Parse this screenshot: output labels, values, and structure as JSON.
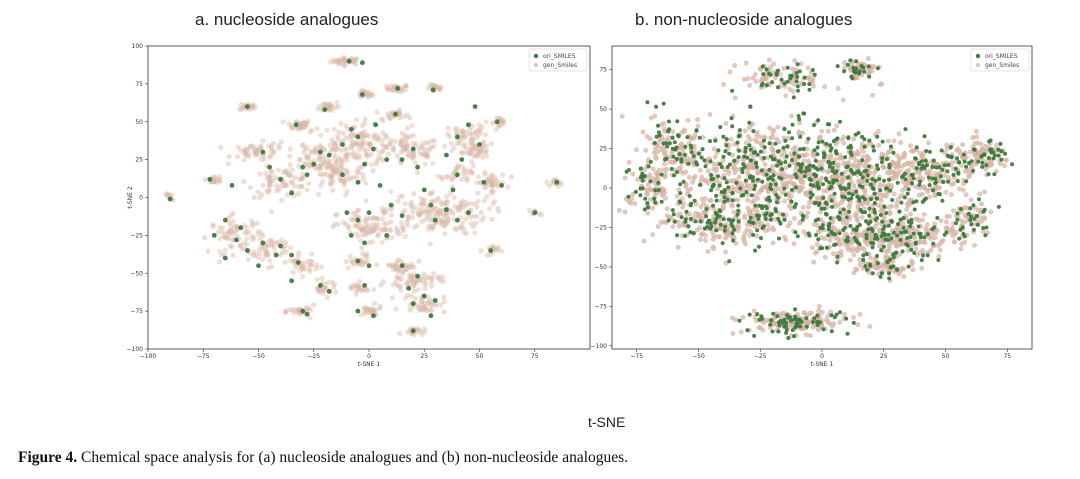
{
  "panels": {
    "a": {
      "title": "a. nucleoside analogues"
    },
    "b": {
      "title": "b. non-nucleoside analogues"
    }
  },
  "overall_label": "t-SNE",
  "caption": {
    "label": "Figure 4.",
    "text": " Chemical space analysis for (a) nucleoside analogues and (b) non-nucleoside analogues."
  },
  "colors": {
    "ori": "#3f7a3f",
    "gen": "#d9b8a8",
    "gen_edge": "#c9a090",
    "frame": "#333333"
  },
  "chart_data": [
    {
      "type": "scatter",
      "title": "a. nucleoside analogues",
      "xlabel": "t-SNE 1",
      "ylabel": "t-SNE 2",
      "xlim": [
        -100,
        100
      ],
      "ylim": [
        -100,
        100
      ],
      "xticks": [
        -100,
        -75,
        -50,
        -25,
        0,
        25,
        50,
        75
      ],
      "yticks": [
        -100,
        -75,
        -50,
        -25,
        0,
        25,
        50,
        75,
        100
      ],
      "legend": {
        "position": "top-right",
        "entries": [
          "ori_SMILES",
          "gen_Smiles"
        ]
      },
      "series": [
        {
          "name": "gen_Smiles",
          "clusters": [
            [
              -10,
              90,
              6,
              2,
              35
            ],
            [
              13,
              72,
              4,
              2,
              25
            ],
            [
              -2,
              68,
              3,
              2,
              20
            ],
            [
              30,
              72,
              3,
              2,
              20
            ],
            [
              -55,
              60,
              3,
              2,
              20
            ],
            [
              -32,
              48,
              5,
              3,
              30
            ],
            [
              -18,
              60,
              4,
              3,
              25
            ],
            [
              12,
              55,
              4,
              2,
              25
            ],
            [
              -5,
              35,
              20,
              12,
              160
            ],
            [
              20,
              30,
              10,
              8,
              60
            ],
            [
              -50,
              30,
              10,
              5,
              50
            ],
            [
              -70,
              12,
              3,
              2,
              18
            ],
            [
              -40,
              10,
              12,
              8,
              70
            ],
            [
              -15,
              15,
              12,
              10,
              80
            ],
            [
              30,
              -10,
              20,
              12,
              180
            ],
            [
              0,
              -20,
              12,
              10,
              90
            ],
            [
              45,
              40,
              8,
              8,
              60
            ],
            [
              55,
              10,
              6,
              5,
              40
            ],
            [
              48,
              30,
              5,
              4,
              30
            ],
            [
              60,
              50,
              3,
              3,
              18
            ],
            [
              -90,
              0,
              2,
              2,
              10
            ],
            [
              85,
              10,
              2,
              2,
              15
            ],
            [
              75,
              -10,
              2,
              2,
              10
            ],
            [
              -60,
              -25,
              10,
              10,
              70
            ],
            [
              -45,
              -35,
              8,
              8,
              50
            ],
            [
              -30,
              -45,
              6,
              5,
              30
            ],
            [
              -20,
              -60,
              5,
              4,
              25
            ],
            [
              -30,
              -75,
              5,
              3,
              25
            ],
            [
              0,
              -75,
              5,
              3,
              25
            ],
            [
              -5,
              -60,
              4,
              3,
              20
            ],
            [
              20,
              -55,
              10,
              5,
              60
            ],
            [
              25,
              -70,
              8,
              5,
              45
            ],
            [
              15,
              -45,
              6,
              4,
              30
            ],
            [
              20,
              -88,
              4,
              2,
              20
            ],
            [
              55,
              -35,
              3,
              3,
              15
            ],
            [
              -5,
              -42,
              5,
              4,
              25
            ],
            [
              40,
              15,
              6,
              5,
              30
            ],
            [
              -25,
              25,
              10,
              8,
              40
            ]
          ]
        },
        {
          "name": "ori_SMILES",
          "points": [
            [
              -9,
              90
            ],
            [
              -3,
              89
            ],
            [
              13,
              72
            ],
            [
              -3,
              68
            ],
            [
              29,
              71
            ],
            [
              -55,
              60
            ],
            [
              -33,
              48
            ],
            [
              -20,
              58
            ],
            [
              12,
              55
            ],
            [
              -8,
              45
            ],
            [
              3,
              48
            ],
            [
              -5,
              40
            ],
            [
              -12,
              35
            ],
            [
              2,
              32
            ],
            [
              -18,
              28
            ],
            [
              -2,
              22
            ],
            [
              8,
              25
            ],
            [
              20,
              32
            ],
            [
              15,
              25
            ],
            [
              -48,
              30
            ],
            [
              -72,
              12
            ],
            [
              -62,
              8
            ],
            [
              -40,
              12
            ],
            [
              -35,
              3
            ],
            [
              -28,
              15
            ],
            [
              -12,
              15
            ],
            [
              -5,
              10
            ],
            [
              5,
              8
            ],
            [
              22,
              20
            ],
            [
              25,
              5
            ],
            [
              28,
              -5
            ],
            [
              35,
              -8
            ],
            [
              40,
              -15
            ],
            [
              45,
              -10
            ],
            [
              30,
              -15
            ],
            [
              15,
              -12
            ],
            [
              -5,
              -15
            ],
            [
              0,
              -10
            ],
            [
              -8,
              -25
            ],
            [
              -2,
              -30
            ],
            [
              8,
              -25
            ],
            [
              40,
              40
            ],
            [
              45,
              48
            ],
            [
              50,
              35
            ],
            [
              48,
              60
            ],
            [
              58,
              50
            ],
            [
              52,
              10
            ],
            [
              60,
              8
            ],
            [
              42,
              25
            ],
            [
              -90,
              -1
            ],
            [
              85,
              10
            ],
            [
              75,
              -10
            ],
            [
              -65,
              -15
            ],
            [
              -58,
              -20
            ],
            [
              -60,
              -28
            ],
            [
              -70,
              -25
            ],
            [
              -55,
              -35
            ],
            [
              -48,
              -30
            ],
            [
              -42,
              -38
            ],
            [
              -40,
              -32
            ],
            [
              -50,
              -45
            ],
            [
              -32,
              -43
            ],
            [
              -35,
              -38
            ],
            [
              -22,
              -58
            ],
            [
              -18,
              -62
            ],
            [
              -30,
              -75
            ],
            [
              -28,
              -77
            ],
            [
              -5,
              -75
            ],
            [
              2,
              -78
            ],
            [
              -2,
              -58
            ],
            [
              18,
              -60
            ],
            [
              22,
              -52
            ],
            [
              25,
              -65
            ],
            [
              30,
              -68
            ],
            [
              20,
              -70
            ],
            [
              28,
              -78
            ],
            [
              15,
              -45
            ],
            [
              20,
              -88
            ],
            [
              55,
              -35
            ],
            [
              -5,
              -42
            ],
            [
              0,
              -45
            ],
            [
              40,
              15
            ],
            [
              38,
              5
            ],
            [
              -25,
              22
            ],
            [
              -22,
              30
            ],
            [
              -30,
              20
            ],
            [
              -65,
              -40
            ],
            [
              -35,
              -55
            ],
            [
              -10,
              -10
            ],
            [
              35,
              28
            ],
            [
              -45,
              20
            ],
            [
              10,
              -5
            ]
          ]
        }
      ]
    },
    {
      "type": "scatter",
      "title": "b. non-nucleoside analogues",
      "xlabel": "t-SNE 1",
      "ylabel": "",
      "xlim": [
        -85,
        85
      ],
      "ylim": [
        -102,
        90
      ],
      "xticks": [
        -75,
        -50,
        -25,
        0,
        25,
        50,
        75
      ],
      "yticks": [
        -100,
        -75,
        -50,
        -25,
        0,
        25,
        50,
        75
      ],
      "legend": {
        "position": "top-right",
        "entries": [
          "ori_SMILES",
          "gen_Smiles"
        ]
      },
      "series": [
        {
          "name": "gen_Smiles",
          "clusters": [
            [
              -20,
              10,
              30,
              28,
              420
            ],
            [
              15,
              5,
              25,
              25,
              300
            ],
            [
              -40,
              -20,
              20,
              15,
              160
            ],
            [
              30,
              -30,
              18,
              12,
              160
            ],
            [
              45,
              10,
              15,
              15,
              120
            ],
            [
              60,
              -20,
              8,
              10,
              60
            ],
            [
              65,
              20,
              10,
              8,
              70
            ],
            [
              -60,
              20,
              12,
              20,
              100
            ],
            [
              10,
              -30,
              15,
              12,
              100
            ],
            [
              -10,
              -85,
              18,
              6,
              130
            ],
            [
              15,
              75,
              6,
              5,
              50
            ],
            [
              -15,
              70,
              15,
              8,
              70
            ],
            [
              -70,
              0,
              8,
              20,
              60
            ],
            [
              25,
              -50,
              10,
              6,
              60
            ]
          ]
        },
        {
          "name": "ori_SMILES",
          "clusters": [
            [
              -20,
              10,
              30,
              28,
              230
            ],
            [
              15,
              5,
              25,
              25,
              160
            ],
            [
              -40,
              -20,
              20,
              15,
              80
            ],
            [
              30,
              -30,
              18,
              12,
              70
            ],
            [
              45,
              10,
              15,
              15,
              60
            ],
            [
              60,
              -20,
              8,
              10,
              25
            ],
            [
              65,
              20,
              10,
              8,
              30
            ],
            [
              -60,
              20,
              12,
              20,
              50
            ],
            [
              10,
              -30,
              15,
              12,
              45
            ],
            [
              -10,
              -85,
              18,
              6,
              60
            ],
            [
              15,
              75,
              6,
              5,
              20
            ],
            [
              -15,
              70,
              15,
              8,
              35
            ],
            [
              -70,
              0,
              8,
              20,
              25
            ],
            [
              25,
              -50,
              10,
              6,
              20
            ]
          ]
        }
      ]
    }
  ]
}
